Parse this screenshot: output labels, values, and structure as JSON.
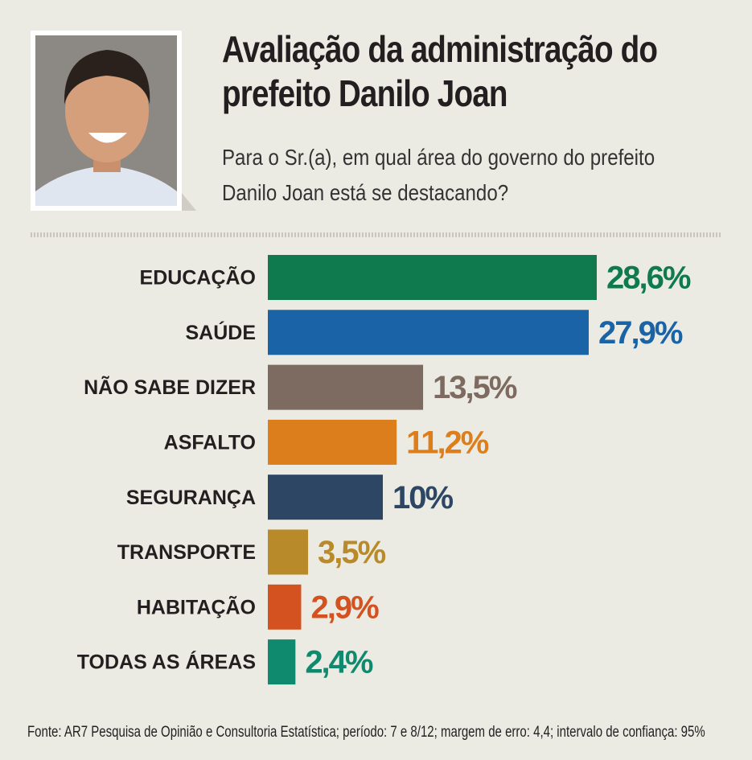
{
  "chart_data": {
    "type": "bar",
    "orientation": "horizontal",
    "title": "Avaliação da administração do prefeito Danilo Joan",
    "subtitle": "Para o Sr.(a), em qual área do governo do prefeito Danilo Joan está se destacando?",
    "categories": [
      "EDUCAÇÃO",
      "SAÚDE",
      "NÃO SABE DIZER",
      "ASFALTO",
      "SEGURANÇA",
      "TRANSPORTE",
      "HABITAÇÃO",
      "TODAS AS ÁREAS"
    ],
    "values": [
      28.6,
      27.9,
      13.5,
      11.2,
      10,
      3.5,
      2.9,
      2.4
    ],
    "value_labels": [
      "28,6%",
      "27,9%",
      "13,5%",
      "11,2%",
      "10%",
      "3,5%",
      "2,9%",
      "2,4%"
    ],
    "colors": [
      "#0e7a4e",
      "#1a63a6",
      "#7d6a60",
      "#dc7e1b",
      "#2c4664",
      "#b98a2a",
      "#d4521f",
      "#0f8a6e"
    ],
    "source": "Fonte: AR7 Pesquisa de Opinião e Consultoria Estatística; período: 7 e 8/12; margem de erro: 4,4; intervalo de confiança: 95%"
  }
}
